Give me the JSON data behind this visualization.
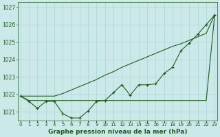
{
  "bg_color": "#cce9e9",
  "line_color": "#1e5c1e",
  "grid_color": "#aad4d4",
  "x_values": [
    0,
    1,
    2,
    3,
    4,
    5,
    6,
    7,
    8,
    9,
    10,
    11,
    12,
    13,
    14,
    15,
    16,
    17,
    18,
    19,
    20,
    21,
    22,
    23
  ],
  "y_main": [
    1021.9,
    1021.6,
    1021.2,
    1021.6,
    1021.6,
    1020.9,
    1020.65,
    1020.65,
    1021.05,
    1021.6,
    1021.65,
    1022.1,
    1022.55,
    1021.95,
    1022.55,
    1022.55,
    1022.6,
    1023.2,
    1023.55,
    1024.5,
    1024.95,
    1025.45,
    1026.0,
    1026.55
  ],
  "y_trend1": [
    1021.9,
    1021.65,
    1021.65,
    1021.65,
    1021.65,
    1021.65,
    1021.65,
    1021.65,
    1021.65,
    1021.65,
    1021.65,
    1021.65,
    1021.65,
    1021.65,
    1021.65,
    1021.65,
    1021.65,
    1021.65,
    1021.65,
    1021.65,
    1021.65,
    1021.65,
    1021.65,
    1026.55
  ],
  "y_trend2": [
    1021.9,
    1021.9,
    1021.9,
    1021.9,
    1021.9,
    1022.05,
    1022.25,
    1022.45,
    1022.65,
    1022.85,
    1023.1,
    1023.3,
    1023.55,
    1023.75,
    1023.95,
    1024.15,
    1024.35,
    1024.55,
    1024.75,
    1024.9,
    1025.1,
    1025.3,
    1025.5,
    1026.55
  ],
  "ylim": [
    1020.5,
    1027.3
  ],
  "yticks": [
    1021,
    1022,
    1023,
    1024,
    1025,
    1026,
    1027
  ],
  "xlim": [
    -0.3,
    23.3
  ],
  "xlabel": "Graphe pression niveau de la mer (hPa)",
  "label_fontsize": 6.5,
  "tick_fontsize": 5.5
}
